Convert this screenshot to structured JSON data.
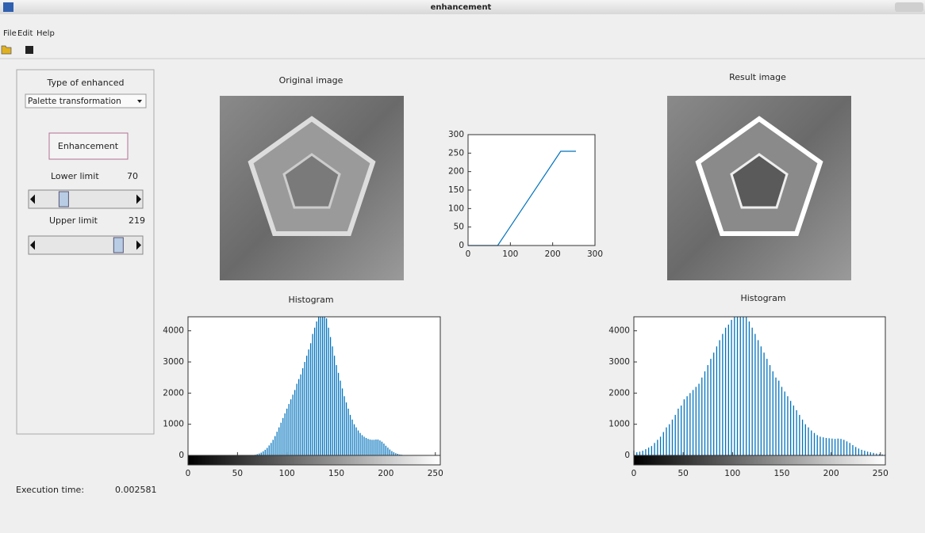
{
  "window": {
    "title": "enhancement"
  },
  "menu": [
    "File",
    "Edit",
    "Help"
  ],
  "panel": {
    "label": "Type of enhanced",
    "dropdown": "Palette transformation",
    "button": "Enhancement",
    "lower_label": "Lower limit",
    "lower_value": 70,
    "upper_label": "Upper limit",
    "upper_value": 219
  },
  "execution": {
    "label": "Execution time:",
    "value": 0.002581
  },
  "original": {
    "title": "Original image"
  },
  "result": {
    "title": "Result image"
  },
  "chart_data": [
    {
      "type": "line",
      "x": [
        0,
        70,
        219,
        255
      ],
      "values": [
        0,
        0,
        255,
        255
      ],
      "color": "#0072bd",
      "xlim": [
        0,
        300
      ],
      "ylim": [
        0,
        300
      ],
      "xticks": [
        0,
        100,
        200,
        300
      ],
      "yticks": [
        0,
        50,
        100,
        150,
        200,
        250,
        300
      ]
    },
    {
      "type": "bar",
      "title": "Histogram",
      "color": "#0072bd",
      "colorbar": true,
      "x": [
        60,
        62,
        64,
        66,
        68,
        70,
        72,
        74,
        76,
        78,
        80,
        82,
        84,
        86,
        88,
        90,
        92,
        94,
        96,
        98,
        100,
        102,
        104,
        106,
        108,
        110,
        112,
        114,
        116,
        118,
        120,
        122,
        124,
        126,
        128,
        130,
        132,
        134,
        136,
        138,
        140,
        142,
        144,
        146,
        148,
        150,
        152,
        154,
        156,
        158,
        160,
        162,
        164,
        166,
        168,
        170,
        172,
        174,
        176,
        178,
        180,
        182,
        184,
        186,
        188,
        190,
        192,
        194,
        196,
        198,
        200,
        202,
        204,
        206,
        208,
        210,
        212,
        214,
        216,
        218,
        220,
        222
      ],
      "values": [
        0,
        0,
        0,
        10,
        20,
        40,
        60,
        90,
        130,
        180,
        240,
        320,
        400,
        500,
        620,
        760,
        900,
        1050,
        1200,
        1350,
        1500,
        1650,
        1800,
        1950,
        2100,
        2300,
        2450,
        2600,
        2800,
        3000,
        3200,
        3400,
        3600,
        3900,
        4100,
        4300,
        4450,
        4450,
        4450,
        4450,
        4400,
        4100,
        3800,
        3500,
        3200,
        2900,
        2650,
        2400,
        2150,
        1900,
        1700,
        1500,
        1300,
        1150,
        1000,
        900,
        800,
        720,
        650,
        600,
        560,
        530,
        510,
        500,
        500,
        510,
        510,
        480,
        440,
        380,
        310,
        250,
        190,
        140,
        100,
        70,
        50,
        30,
        20,
        10,
        5,
        0
      ],
      "xlim": [
        0,
        255
      ],
      "ylim": [
        0,
        4450
      ],
      "xticks": [
        0,
        50,
        100,
        150,
        200,
        250
      ],
      "yticks": [
        0,
        1000,
        2000,
        3000,
        4000
      ]
    },
    {
      "type": "bar",
      "title": "Histogram",
      "color": "#0072bd",
      "colorbar": true,
      "x": [
        0,
        3,
        6,
        9,
        12,
        15,
        18,
        21,
        24,
        27,
        30,
        33,
        36,
        39,
        42,
        45,
        48,
        51,
        54,
        57,
        60,
        63,
        66,
        69,
        72,
        75,
        78,
        81,
        84,
        87,
        90,
        93,
        96,
        99,
        102,
        105,
        108,
        111,
        114,
        117,
        120,
        123,
        126,
        129,
        132,
        135,
        138,
        141,
        144,
        147,
        150,
        153,
        156,
        159,
        162,
        165,
        168,
        171,
        174,
        177,
        180,
        183,
        186,
        189,
        192,
        195,
        198,
        201,
        204,
        207,
        210,
        213,
        216,
        219,
        222,
        225,
        228,
        231,
        234,
        237,
        240,
        243,
        246,
        249,
        252,
        255
      ],
      "values": [
        150,
        100,
        120,
        150,
        200,
        250,
        300,
        400,
        500,
        600,
        750,
        900,
        1000,
        1150,
        1300,
        1500,
        1600,
        1800,
        1900,
        2000,
        2100,
        2200,
        2300,
        2500,
        2700,
        2900,
        3100,
        3300,
        3500,
        3700,
        3900,
        4100,
        4200,
        4350,
        4450,
        4450,
        4450,
        4450,
        4450,
        4300,
        4100,
        3900,
        3700,
        3500,
        3300,
        3100,
        2900,
        2700,
        2500,
        2400,
        2200,
        2050,
        1900,
        1750,
        1600,
        1450,
        1300,
        1150,
        1000,
        900,
        800,
        720,
        650,
        600,
        580,
        560,
        550,
        540,
        530,
        540,
        530,
        500,
        450,
        400,
        330,
        270,
        220,
        180,
        150,
        120,
        100,
        80,
        60,
        40,
        30,
        20
      ],
      "xlim": [
        0,
        255
      ],
      "ylim": [
        0,
        4450
      ],
      "xticks": [
        0,
        50,
        100,
        150,
        200,
        250
      ],
      "yticks": [
        0,
        1000,
        2000,
        3000,
        4000
      ]
    }
  ]
}
